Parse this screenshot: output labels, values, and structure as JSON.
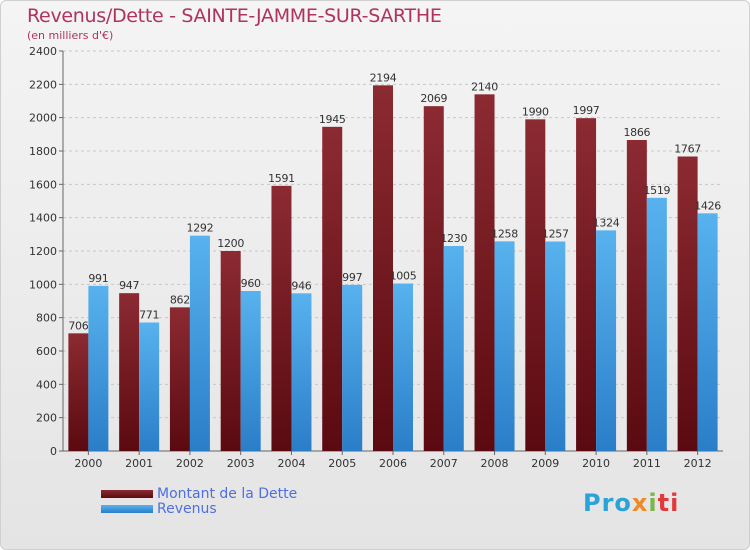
{
  "chart_data": {
    "type": "bar",
    "title": "Revenus/Dette - SAINTE-JAMME-SUR-SARTHE",
    "subtitle": "(en milliers d'€)",
    "categories": [
      "2000",
      "2001",
      "2002",
      "2003",
      "2004",
      "2005",
      "2006",
      "2007",
      "2008",
      "2009",
      "2010",
      "2011",
      "2012"
    ],
    "series": [
      {
        "name": "Montant de la Dette",
        "color": "#7a1a1f",
        "values": [
          706,
          947,
          862,
          1200,
          1591,
          1945,
          2194,
          2069,
          2140,
          1990,
          1997,
          1866,
          1767
        ]
      },
      {
        "name": "Revenus",
        "color": "#4aa3e8",
        "values": [
          991,
          771,
          1292,
          960,
          946,
          997,
          1005,
          1230,
          1258,
          1257,
          1324,
          1519,
          1426
        ]
      }
    ],
    "ylim": [
      0,
      2400
    ],
    "yticks": [
      0,
      200,
      400,
      600,
      800,
      1000,
      1200,
      1400,
      1600,
      1800,
      2000,
      2200,
      2400
    ],
    "grid": true,
    "legend_position": "bottom-left"
  },
  "logo": {
    "parts": [
      "Pro",
      "x",
      "i",
      "ti"
    ]
  }
}
